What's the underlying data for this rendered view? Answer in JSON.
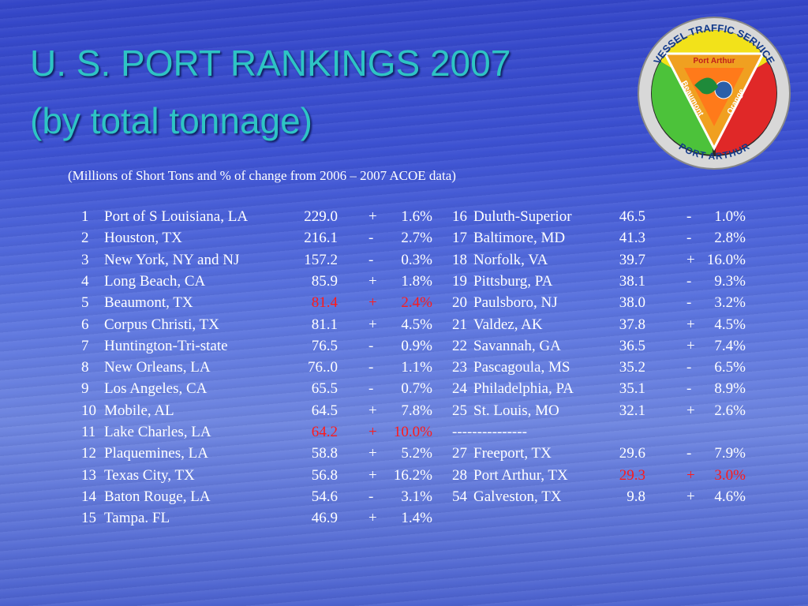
{
  "header": {
    "title_lines": [
      "U. S. PORT RANKINGS 2007",
      "(by total tonnage)"
    ],
    "subtitle": "(Millions of Short Tons and % of change from 2006 – 2007 ACOE data)"
  },
  "logo": {
    "ring_top": "VESSEL TRAFFIC SERVICE",
    "ring_bottom": "PORT ARTHUR",
    "top": "Port Arthur",
    "left": "Beaumont",
    "right": "Orange"
  },
  "table": {
    "left": [
      {
        "rank": "1",
        "name": "Port of S Louisiana, LA",
        "tons": "229.0",
        "sign": "+",
        "pct": "1.6%"
      },
      {
        "rank": "2",
        "name": "Houston, TX",
        "tons": "216.1",
        "sign": "-",
        "pct": "2.7%"
      },
      {
        "rank": "3",
        "name": "New York, NY and NJ",
        "tons": "157.2",
        "sign": "-",
        "pct": "0.3%"
      },
      {
        "rank": "4",
        "name": "Long Beach, CA",
        "tons": "85.9",
        "sign": "+",
        "pct": "1.8%"
      },
      {
        "rank": "5",
        "name": "Beaumont, TX",
        "tons": "81.4",
        "sign": "+",
        "pct": "2.4%",
        "highlight": true
      },
      {
        "rank": "6",
        "name": "Corpus Christi, TX",
        "tons": "81.1",
        "sign": "+",
        "pct": "4.5%"
      },
      {
        "rank": "7",
        "name": "Huntington-Tri-state",
        "tons": "76.5",
        "sign": "-",
        "pct": "0.9%"
      },
      {
        "rank": "8",
        "name": "New Orleans, LA",
        "tons": "76..0",
        "sign": "-",
        "pct": "1.1%"
      },
      {
        "rank": "9",
        "name": "Los Angeles, CA",
        "tons": "65.5",
        "sign": "-",
        "pct": "0.7%"
      },
      {
        "rank": "10",
        "name": "Mobile, AL",
        "tons": "64.5",
        "sign": "+",
        "pct": "7.8%"
      },
      {
        "rank": "11",
        "name": "Lake Charles, LA",
        "tons": "64.2",
        "sign": "+",
        "pct": "10.0%",
        "highlight": true
      },
      {
        "rank": "12",
        "name": "Plaquemines, LA",
        "tons": "58.8",
        "sign": "+",
        "pct": "5.2%"
      },
      {
        "rank": "13",
        "name": "Texas City, TX",
        "tons": "56.8",
        "sign": "+",
        "pct": "16.2%"
      },
      {
        "rank": "14",
        "name": "Baton Rouge, LA",
        "tons": "54.6",
        "sign": "-",
        "pct": "3.1%"
      },
      {
        "rank": "15",
        "name": "Tampa. FL",
        "tons": "46.9",
        "sign": "+",
        "pct": "1.4%"
      }
    ],
    "right": [
      {
        "rank": "16",
        "name": "Duluth-Superior",
        "tons": "46.5",
        "sign": "-",
        "pct": "1.0%"
      },
      {
        "rank": "17",
        "name": "Baltimore, MD",
        "tons": "41.3",
        "sign": "-",
        "pct": "2.8%"
      },
      {
        "rank": "18",
        "name": "Norfolk, VA",
        "tons": "39.7",
        "sign": "+",
        "pct": "16.0%"
      },
      {
        "rank": "19",
        "name": "Pittsburg, PA",
        "tons": "38.1",
        "sign": "-",
        "pct": "9.3%"
      },
      {
        "rank": "20",
        "name": "Paulsboro, NJ",
        "tons": "38.0",
        "sign": "-",
        "pct": "3.2%"
      },
      {
        "rank": "21",
        "name": "Valdez, AK",
        "tons": "37.8",
        "sign": "+",
        "pct": "4.5%"
      },
      {
        "rank": "22",
        "name": "Savannah, GA",
        "tons": "36.5",
        "sign": "+",
        "pct": "7.4%"
      },
      {
        "rank": "23",
        "name": "Pascagoula, MS",
        "tons": "35.2",
        "sign": "-",
        "pct": "6.5%"
      },
      {
        "rank": "24",
        "name": "Philadelphia, PA",
        "tons": "35.1",
        "sign": "-",
        "pct": "8.9%"
      },
      {
        "rank": "25",
        "name": "St. Louis, MO",
        "tons": "32.1",
        "sign": "+",
        "pct": "2.6%"
      },
      {
        "rank": "---------------"
      },
      {
        "rank": "27",
        "name": "Freeport, TX",
        "tons": "29.6",
        "sign": "-",
        "pct": "7.9%"
      },
      {
        "rank": "28",
        "name": "Port Arthur, TX",
        "tons": "29.3",
        "sign": "+",
        "pct": "3.0%",
        "highlight": true
      },
      {
        "rank": "54",
        "name": "Galveston, TX",
        "tons": "9.8",
        "sign": "+",
        "pct": "4.6%"
      }
    ]
  }
}
